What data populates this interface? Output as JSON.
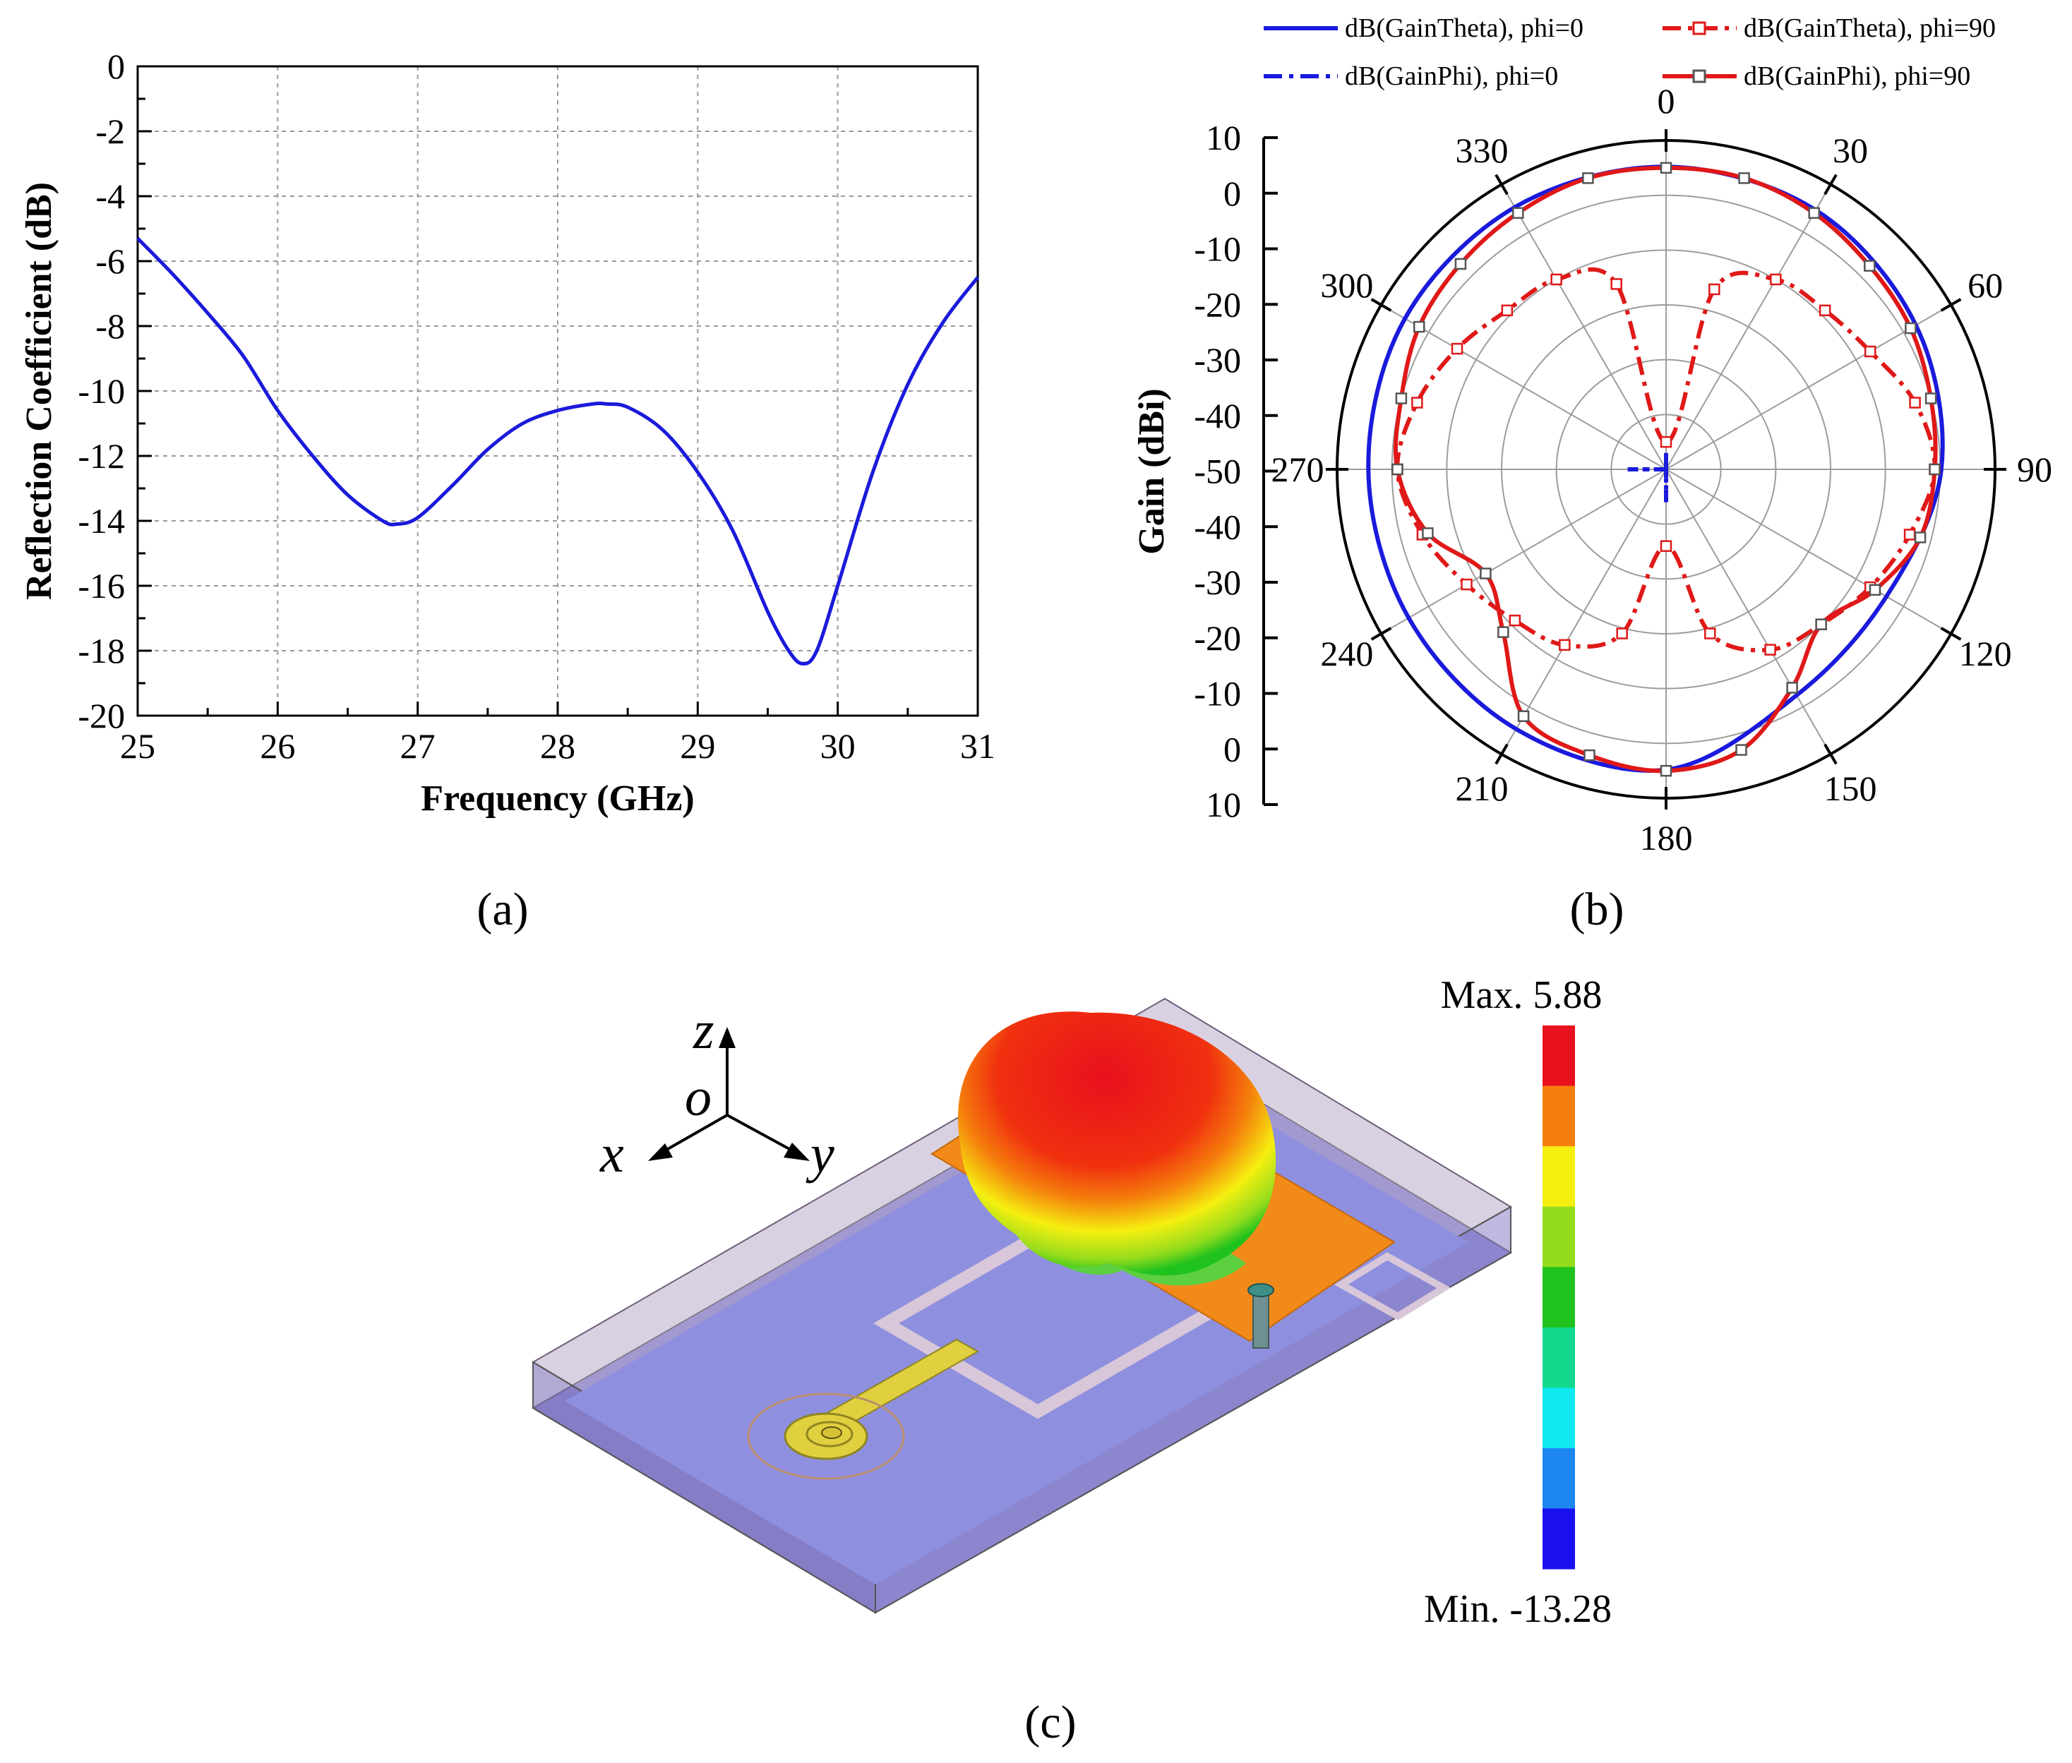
{
  "chart_data": [
    {
      "panel": "(a)",
      "type": "line",
      "xlabel": "Frequency (GHz)",
      "ylabel": "Reflection Coefficient (dB)",
      "xlim": [
        25,
        31
      ],
      "ylim": [
        -20,
        0
      ],
      "xticks": [
        "25",
        "26",
        "27",
        "28",
        "29",
        "30",
        "31"
      ],
      "yticks": [
        "0",
        "-2",
        "-4",
        "-6",
        "-8",
        "-10",
        "-12",
        "-14",
        "-16",
        "-18",
        "-20"
      ],
      "grid": true,
      "series": [
        {
          "color": "#1a1adc",
          "x": [
            25.0,
            25.25,
            25.5,
            25.75,
            26.0,
            26.25,
            26.5,
            26.75,
            26.85,
            27.0,
            27.25,
            27.5,
            27.75,
            28.0,
            28.25,
            28.35,
            28.5,
            28.75,
            29.0,
            29.25,
            29.5,
            29.65,
            29.75,
            29.85,
            30.0,
            30.25,
            30.5,
            30.75,
            31.0
          ],
          "y": [
            -5.3,
            -6.4,
            -7.6,
            -8.9,
            -10.6,
            -12.0,
            -13.2,
            -14.0,
            -14.1,
            -13.9,
            -12.9,
            -11.8,
            -11.0,
            -10.6,
            -10.4,
            -10.4,
            -10.5,
            -11.2,
            -12.5,
            -14.3,
            -16.8,
            -18.0,
            -18.4,
            -18.0,
            -16.0,
            -12.5,
            -9.8,
            -7.9,
            -6.5
          ]
        }
      ]
    },
    {
      "panel": "(b)",
      "type": "polar",
      "ylabel": "Gain (dBi)",
      "radial_range": [
        -50,
        10
      ],
      "radial_ticks": [
        "10",
        "0",
        "-10",
        "-20",
        "-30",
        "-40",
        "-50",
        "-40",
        "-30",
        "-20",
        "-10",
        "0",
        "10"
      ],
      "angle_ticks": [
        "0",
        "30",
        "60",
        "90",
        "120",
        "150",
        "180",
        "210",
        "240",
        "270",
        "300",
        "330"
      ],
      "legend_position": "top",
      "series": [
        {
          "name": "dB(GainTheta), phi=0",
          "color": "#1a1adc",
          "style": "solid",
          "theta": [
            0,
            30,
            60,
            90,
            120,
            150,
            180,
            210,
            240,
            270,
            300,
            330
          ],
          "r": [
            5.2,
            4.6,
            2.6,
            0.2,
            -3.6,
            -2.4,
            4.8,
            4.7,
            4.2,
            4.3,
            5.0,
            5.2
          ]
        },
        {
          "name": "dB(GainPhi), phi=0",
          "color": "#1a1adc",
          "style": "dashdot",
          "theta": [
            0,
            30,
            60,
            90,
            120,
            150,
            180,
            210,
            240,
            270,
            300,
            330
          ],
          "r": [
            -47,
            -50,
            -50,
            -50,
            -50,
            -50,
            -44,
            -50,
            -50,
            -43,
            -50,
            -50
          ]
        },
        {
          "name": "dB(GainTheta), phi=90",
          "color": "#e01818",
          "style": "dashdot-marker",
          "theta": [
            0,
            15,
            30,
            45,
            60,
            75,
            90,
            105,
            120,
            135,
            150,
            165,
            180,
            195,
            210,
            225,
            240,
            255,
            270,
            285,
            300,
            315,
            330,
            345
          ],
          "r": [
            -45,
            -16,
            -10,
            -9,
            -7,
            -3,
            -1,
            -4,
            -7,
            -10,
            -12,
            -19,
            -36,
            -19,
            -13,
            -11,
            -8,
            -4,
            -1,
            -3,
            -6,
            -9,
            -10,
            -15
          ]
        },
        {
          "name": "dB(GainPhi), phi=90",
          "color": "#e01818",
          "style": "solid-marker",
          "theta": [
            0,
            15,
            30,
            45,
            60,
            75,
            90,
            105,
            120,
            135,
            150,
            165,
            180,
            195,
            210,
            225,
            240,
            255,
            270,
            285,
            300,
            315,
            330,
            345
          ],
          "r": [
            5,
            5,
            4,
            2.5,
            1.5,
            0,
            -1,
            -2,
            -6,
            -10,
            -4,
            3,
            5,
            4,
            2,
            -8,
            -12,
            -5,
            -1,
            0,
            2,
            3,
            4,
            5
          ]
        }
      ]
    },
    {
      "panel": "(c)",
      "type": "heatmap",
      "colorbar_max_label": "Max. 5.88",
      "colorbar_min_label": "Min. -13.28",
      "colorbar_colors": [
        "#e8111d",
        "#f57f0c",
        "#f5ef10",
        "#93dc1c",
        "#20c21e",
        "#12d98e",
        "#0fe9ef",
        "#1d86f0",
        "#1a10ef"
      ],
      "axis_labels": [
        "z",
        "o",
        "x",
        "y"
      ]
    }
  ],
  "captions": {
    "a": "(a)",
    "b": "(b)",
    "c": "(c)"
  }
}
